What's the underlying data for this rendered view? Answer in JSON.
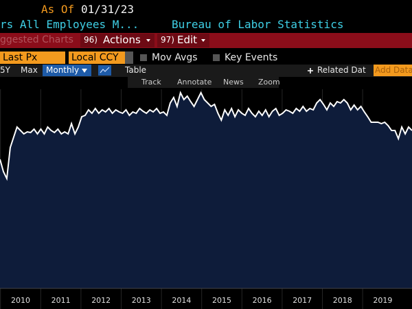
{
  "header": {
    "as_of_label": "As Of",
    "as_of_date": "01/31/23",
    "security": "rs All Employees M...",
    "source": "Bureau of Labor Statistics"
  },
  "menu": {
    "suggested": "ggested Charts",
    "actions_code": "96)",
    "actions": "Actions",
    "edit_code": "97)",
    "edit": "Edit"
  },
  "options": {
    "field": "Last Px",
    "currency": "Local CCY",
    "mov_avgs": "Mov Avgs",
    "key_events": "Key Events"
  },
  "toolbar": {
    "range_5y": "5Y",
    "range_max": "Max",
    "period": "Monthly",
    "table": "Table",
    "related": "Related Dat",
    "add_data": "Add Data"
  },
  "tools": {
    "track": "Track",
    "annotate": "Annotate",
    "news": "News",
    "zoom": "Zoom"
  },
  "chart_data": {
    "type": "area",
    "color": "#ffffff",
    "fill": "#0e1c3a",
    "ylim": [
      0,
      290
    ],
    "x_labels": [
      "2010",
      "2011",
      "2012",
      "2013",
      "2014",
      "2015",
      "2016",
      "2017",
      "2018",
      "2019"
    ],
    "values": [
      188,
      170,
      160,
      205,
      220,
      235,
      230,
      225,
      228,
      227,
      232,
      225,
      232,
      225,
      235,
      230,
      227,
      232,
      225,
      228,
      225,
      240,
      225,
      235,
      250,
      252,
      260,
      255,
      262,
      255,
      260,
      257,
      262,
      255,
      260,
      257,
      255,
      260,
      252,
      257,
      255,
      262,
      258,
      255,
      260,
      257,
      262,
      255,
      257,
      252,
      270,
      278,
      265,
      285,
      275,
      280,
      272,
      265,
      275,
      285,
      275,
      270,
      265,
      268,
      255,
      245,
      260,
      252,
      262,
      250,
      260,
      255,
      252,
      262,
      255,
      250,
      258,
      252,
      260,
      250,
      258,
      262,
      252,
      255,
      260,
      258,
      255,
      262,
      258,
      265,
      258,
      262,
      260,
      270,
      275,
      268,
      260,
      270,
      265,
      272,
      270,
      275,
      270,
      260,
      267,
      260,
      265,
      257,
      250,
      242,
      242,
      242,
      240,
      242,
      237,
      230,
      230,
      218,
      235,
      225,
      235,
      230
    ]
  }
}
